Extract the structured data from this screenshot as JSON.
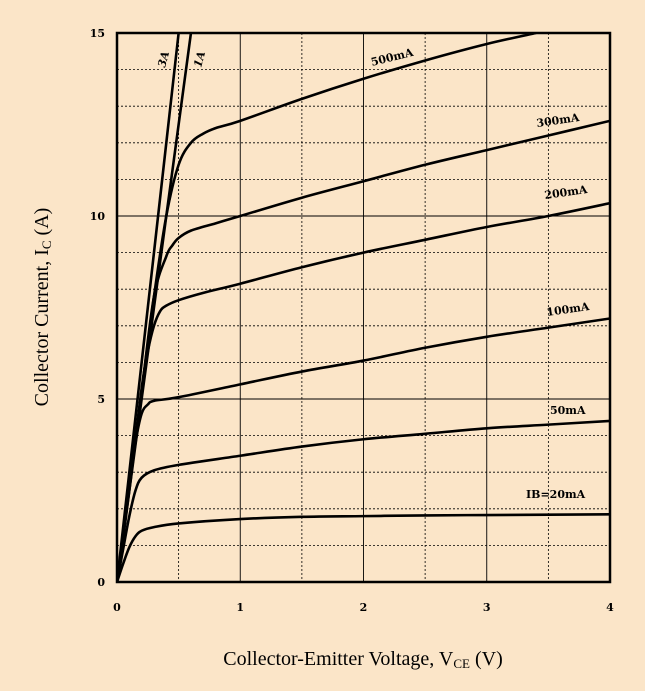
{
  "chart_data": {
    "type": "line",
    "xlabel": "Collector-Emitter Voltage, V",
    "xlabel_sub": "CE",
    "xlabel_unit": " (V)",
    "ylabel": "Collector Current, I",
    "ylabel_sub": "C",
    "ylabel_unit": " (A)",
    "xlim": [
      0,
      4
    ],
    "ylim": [
      0,
      15
    ],
    "x_ticks": [
      0,
      1,
      2,
      3,
      4
    ],
    "x_tick_labels": [
      "0",
      "1",
      "2",
      "3",
      "4"
    ],
    "y_ticks": [
      0,
      5,
      10,
      15
    ],
    "y_tick_labels": [
      "0",
      "5",
      "10",
      "15"
    ],
    "grid": "dotted",
    "background": "#fbe5c8",
    "series": [
      {
        "name": "IB=20mA",
        "x": [
          0,
          0.05,
          0.1,
          0.15,
          0.2,
          0.3,
          0.5,
          1,
          1.5,
          2,
          2.5,
          3,
          3.5,
          4
        ],
        "y": [
          0,
          0.5,
          0.95,
          1.25,
          1.4,
          1.5,
          1.6,
          1.72,
          1.78,
          1.8,
          1.82,
          1.83,
          1.84,
          1.85
        ]
      },
      {
        "name": "50mA",
        "x": [
          0,
          0.05,
          0.1,
          0.15,
          0.2,
          0.3,
          0.5,
          1,
          1.5,
          2,
          2.5,
          3,
          3.5,
          4
        ],
        "y": [
          0,
          0.9,
          1.8,
          2.5,
          2.85,
          3.05,
          3.2,
          3.45,
          3.7,
          3.9,
          4.05,
          4.2,
          4.3,
          4.4
        ]
      },
      {
        "name": "100mA",
        "x": [
          0,
          0.05,
          0.1,
          0.15,
          0.2,
          0.25,
          0.3,
          0.5,
          1,
          1.5,
          2,
          2.5,
          3,
          3.5,
          4
        ],
        "y": [
          0,
          1.2,
          2.5,
          3.8,
          4.6,
          4.85,
          4.95,
          5.05,
          5.4,
          5.75,
          6.05,
          6.4,
          6.7,
          6.95,
          7.2
        ]
      },
      {
        "name": "200mA",
        "x": [
          0,
          0.1,
          0.2,
          0.25,
          0.3,
          0.35,
          0.4,
          0.5,
          0.7,
          1,
          1.5,
          2,
          2.5,
          3,
          3.5,
          4
        ],
        "y": [
          0,
          2.6,
          5.3,
          6.3,
          7.0,
          7.4,
          7.55,
          7.7,
          7.9,
          8.15,
          8.6,
          9.0,
          9.35,
          9.7,
          10.0,
          10.35
        ]
      },
      {
        "name": "300mA",
        "x": [
          0,
          0.1,
          0.2,
          0.3,
          0.4,
          0.45,
          0.5,
          0.6,
          0.8,
          1,
          1.5,
          2,
          2.5,
          3,
          3.5,
          4
        ],
        "y": [
          0,
          2.6,
          5.2,
          7.8,
          8.9,
          9.2,
          9.4,
          9.6,
          9.8,
          10.0,
          10.5,
          10.95,
          11.4,
          11.8,
          12.2,
          12.6
        ]
      },
      {
        "name": "500mA",
        "x": [
          0,
          0.1,
          0.2,
          0.3,
          0.4,
          0.5,
          0.6,
          0.7,
          0.8,
          1,
          1.5,
          2,
          2.5,
          3,
          3.4
        ],
        "y": [
          0,
          2.6,
          5.2,
          7.8,
          10.0,
          11.4,
          12.0,
          12.25,
          12.4,
          12.6,
          13.2,
          13.75,
          14.25,
          14.7,
          15.0
        ]
      },
      {
        "name": "1A",
        "x": [
          0,
          0.2,
          0.4,
          0.6
        ],
        "y": [
          0,
          5.0,
          10.0,
          15.0
        ]
      },
      {
        "name": "3A",
        "x": [
          0,
          0.2,
          0.4,
          0.5
        ],
        "y": [
          0,
          6.0,
          12.0,
          15.0
        ]
      }
    ]
  }
}
